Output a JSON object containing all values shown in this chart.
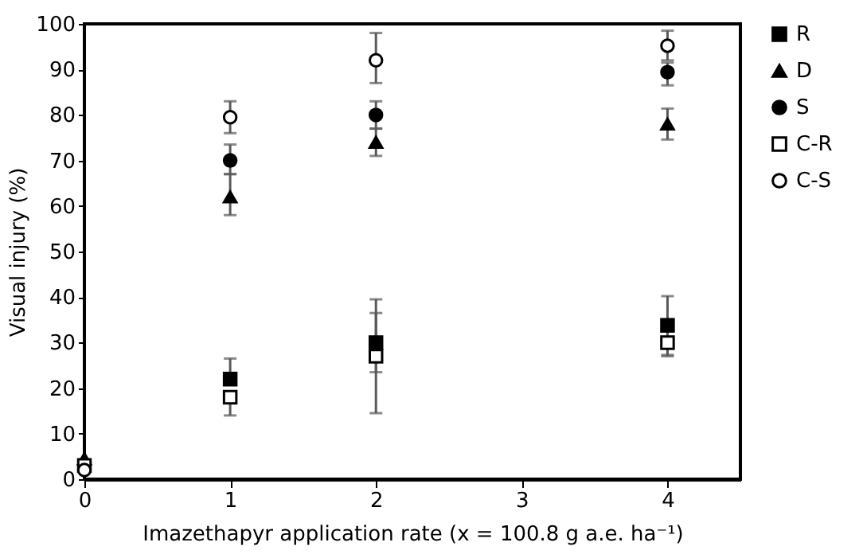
{
  "chart_data": {
    "type": "scatter",
    "xlabel": "Imazethapyr application rate (x = 100.8 g a.e. ha⁻¹)",
    "ylabel": "Visual injury (%)",
    "x": [
      0,
      1,
      2,
      4
    ],
    "xlim": [
      0,
      4.5
    ],
    "xticks": [
      0,
      1,
      2,
      3,
      4
    ],
    "ylim": [
      0,
      100
    ],
    "yticks": [
      0,
      10,
      20,
      30,
      40,
      50,
      60,
      70,
      80,
      90,
      100
    ],
    "grid": false,
    "legend": "right",
    "series": [
      {
        "name": "R",
        "color": "#000000",
        "marker": "square",
        "values": [
          null,
          22,
          30,
          33.8
        ],
        "errors": [
          null,
          [
            22,
            26.5
          ],
          [
            23.5,
            36.5
          ],
          [
            27.3,
            40.2
          ]
        ]
      },
      {
        "name": "D",
        "color": "#000000",
        "marker": "triangle",
        "values": [
          4.5,
          62,
          74,
          78
        ],
        "errors": [
          null,
          [
            58,
            67
          ],
          [
            71,
            77
          ],
          [
            74.6,
            81.4
          ]
        ]
      },
      {
        "name": "S",
        "color": "#000000",
        "marker": "circle",
        "values": [
          null,
          70,
          80,
          89.4
        ],
        "errors": [
          null,
          [
            67,
            73.5
          ],
          [
            77,
            83
          ],
          [
            86.5,
            91.5
          ]
        ]
      },
      {
        "name": "C-R",
        "color": "#ffffff",
        "marker": "square",
        "values": [
          3,
          18,
          27,
          30
        ],
        "errors": [
          null,
          [
            14,
            18
          ],
          [
            14.5,
            39.5
          ],
          [
            27,
            33
          ]
        ]
      },
      {
        "name": "C-S",
        "color": "#ffffff",
        "marker": "circle",
        "values": [
          2,
          79.5,
          92,
          95.2
        ],
        "errors": [
          null,
          [
            76,
            83
          ],
          [
            87,
            98
          ],
          [
            92,
            98.5
          ]
        ]
      }
    ]
  }
}
